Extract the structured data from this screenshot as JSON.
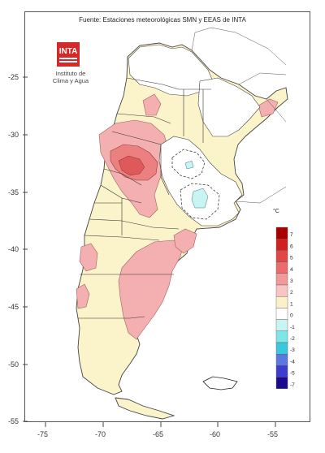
{
  "title": "Fuente: Estaciones meteorológicas SMN y EEAS de INTA",
  "logo_text": "INTA",
  "institute_lines": [
    "Instituto de",
    "Clima y Agua"
  ],
  "lat_labels": [
    "-25",
    "-30",
    "-35",
    "-40",
    "-45",
    "-50",
    "-55"
  ],
  "lon_labels": [
    "-75",
    "-70",
    "-65",
    "-60",
    "-55"
  ],
  "legend": {
    "title": "°C",
    "items": [
      {
        "value": "7",
        "color": "#a80000"
      },
      {
        "value": "6",
        "color": "#d02020"
      },
      {
        "value": "5",
        "color": "#e04848"
      },
      {
        "value": "4",
        "color": "#ea6c6c"
      },
      {
        "value": "3",
        "color": "#f09a9a"
      },
      {
        "value": "2",
        "color": "#f8c4c4"
      },
      {
        "value": "1",
        "color": "#fbf1c8"
      },
      {
        "value": "0",
        "color": "#ffffff"
      },
      {
        "value": "-1",
        "color": "#c9f4f4"
      },
      {
        "value": "-2",
        "color": "#7de6e6"
      },
      {
        "value": "-3",
        "color": "#3cc8dc"
      },
      {
        "value": "-4",
        "color": "#5c78e0"
      },
      {
        "value": "-5",
        "color": "#3c3cd0"
      },
      {
        "value": "-7",
        "color": "#1a0a90"
      }
    ]
  }
}
